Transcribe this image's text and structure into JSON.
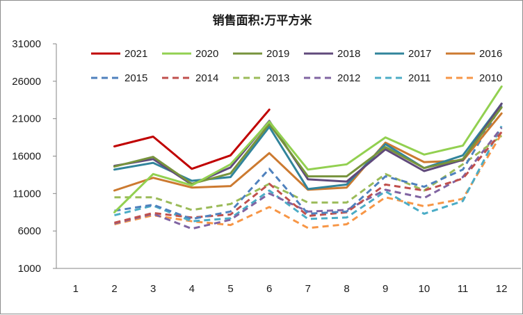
{
  "chart_data": {
    "type": "line",
    "title": "销售面积:万平方米",
    "xlabel": "",
    "ylabel": "",
    "categories": [
      "1",
      "2",
      "3",
      "4",
      "5",
      "6",
      "7",
      "8",
      "9",
      "10",
      "11",
      "12"
    ],
    "ylim": [
      1000,
      31000
    ],
    "yticks": [
      1000,
      6000,
      11000,
      16000,
      21000,
      26000,
      31000
    ],
    "grid": false,
    "legend_position": "top",
    "series": [
      {
        "name": "2021",
        "color": "#c00000",
        "dash": "solid",
        "values": [
          null,
          17300,
          18600,
          14300,
          16100,
          22200,
          null,
          null,
          null,
          null,
          null,
          null
        ]
      },
      {
        "name": "2020",
        "color": "#92d050",
        "dash": "solid",
        "values": [
          null,
          8500,
          13600,
          12100,
          14900,
          20600,
          14200,
          14900,
          18500,
          16200,
          17400,
          25300
        ]
      },
      {
        "name": "2019",
        "color": "#77933c",
        "dash": "solid",
        "values": [
          null,
          14600,
          15900,
          12300,
          13700,
          20300,
          13300,
          13300,
          17200,
          14400,
          15600,
          22500
        ]
      },
      {
        "name": "2018",
        "color": "#604a7b",
        "dash": "solid",
        "values": [
          null,
          14700,
          15600,
          12200,
          14500,
          20700,
          12900,
          12600,
          16900,
          14000,
          15500,
          23000
        ]
      },
      {
        "name": "2017",
        "color": "#31849b",
        "dash": "solid",
        "values": [
          null,
          14200,
          15100,
          12700,
          13200,
          19900,
          11600,
          12200,
          17600,
          14400,
          16100,
          23000
        ]
      },
      {
        "name": "2016",
        "color": "#cc7a30",
        "dash": "solid",
        "values": [
          null,
          11400,
          13100,
          11800,
          12000,
          16400,
          11500,
          11800,
          17800,
          15200,
          15400,
          21700
        ]
      },
      {
        "name": "2015",
        "color": "#4f81bd",
        "dash": "dash",
        "values": [
          null,
          8700,
          9500,
          7600,
          8600,
          14300,
          8300,
          8600,
          13300,
          11900,
          14200,
          22800
        ]
      },
      {
        "name": "2014",
        "color": "#c0504d",
        "dash": "dash",
        "values": [
          null,
          7100,
          8400,
          7800,
          8200,
          12300,
          8000,
          8500,
          12200,
          11400,
          13000,
          19200
        ]
      },
      {
        "name": "2013",
        "color": "#9bbb59",
        "dash": "dash",
        "values": [
          null,
          10500,
          10500,
          8800,
          9600,
          12300,
          9800,
          9800,
          13600,
          11400,
          14900,
          18700
        ]
      },
      {
        "name": "2012",
        "color": "#8064a2",
        "dash": "dash",
        "values": [
          null,
          7000,
          8300,
          6300,
          7500,
          11000,
          8600,
          8800,
          11500,
          10400,
          13200,
          19800
        ]
      },
      {
        "name": "2011",
        "color": "#4bacc6",
        "dash": "dash",
        "values": [
          null,
          8100,
          9400,
          7300,
          7700,
          11400,
          7600,
          7800,
          11300,
          8300,
          10000,
          20000
        ]
      },
      {
        "name": "2010",
        "color": "#f79646",
        "dash": "dash",
        "values": [
          null,
          6900,
          8100,
          7300,
          6800,
          9200,
          6400,
          6900,
          10500,
          9300,
          10300,
          19000
        ]
      }
    ]
  }
}
